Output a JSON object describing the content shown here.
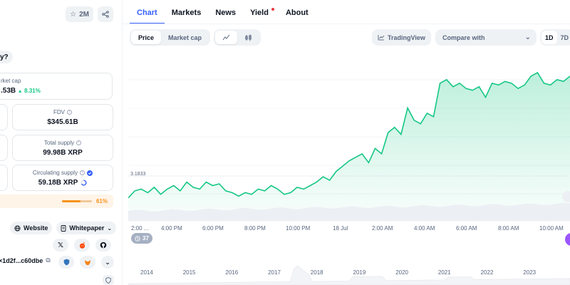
{
  "left": {
    "stars_count": "2M",
    "ask_text": "y?",
    "market_cap": {
      "label": "rket cap",
      "value": ".53B",
      "change": "8.31%"
    },
    "fdv": {
      "label": "FDV",
      "value": "$345.61B"
    },
    "total_supply": {
      "label": "Total supply",
      "value": "99.98B XRP"
    },
    "circulating_supply": {
      "label": "Circulating supply",
      "value": "59.18B XRP",
      "percent": 61,
      "percent_text": "61%"
    },
    "links": {
      "website": "Website",
      "whitepaper": "Whitepaper"
    },
    "socials": [
      "X",
      "reddit",
      "github"
    ],
    "contract": {
      "address": "×1d2f...c60dbe"
    }
  },
  "tabs": [
    {
      "label": "Chart"
    },
    {
      "label": "Markets"
    },
    {
      "label": "News"
    },
    {
      "label": "Yield"
    },
    {
      "label": "About"
    }
  ],
  "toolbar": {
    "price": "Price",
    "market_cap": "Market cap",
    "tradingview": "TradingView",
    "compare": "Compare with",
    "range_1d": "1D",
    "range_7d": "7D"
  },
  "chart_data": {
    "type": "area",
    "price_tag": "3.1833",
    "x_time_labels": [
      "2:00 ...",
      "4:00 PM",
      "6:00 PM",
      "8:00 PM",
      "10:00 PM",
      "18 Jul",
      "2:00 AM",
      "4:00 AM",
      "6:00 AM",
      "8:00 AM",
      "10:00 AM"
    ],
    "x_year_labels": [
      "2014",
      "2015",
      "2016",
      "2017",
      "2018",
      "2019",
      "2020",
      "2021",
      "2022",
      "2023"
    ],
    "events_badge": "37",
    "colors": {
      "line": "#16c784",
      "fill": "#16c784"
    },
    "series": [
      {
        "values": [
          3.18,
          3.22,
          3.23,
          3.21,
          3.24,
          3.2,
          3.23,
          3.25,
          3.22,
          3.27,
          3.24,
          3.23,
          3.27,
          3.25,
          3.26,
          3.22,
          3.21,
          3.19,
          3.21,
          3.2,
          3.23,
          3.22,
          3.25,
          3.23,
          3.2,
          3.21,
          3.24,
          3.23,
          3.25,
          3.27,
          3.3,
          3.28,
          3.33,
          3.36,
          3.39,
          3.41,
          3.43,
          3.38,
          3.46,
          3.43,
          3.55,
          3.58,
          3.54,
          3.69,
          3.62,
          3.6,
          3.66,
          3.64,
          3.83,
          3.85,
          3.81,
          3.83,
          3.8,
          3.79,
          3.81,
          3.75,
          3.83,
          3.82,
          3.84,
          3.83,
          3.8,
          3.82,
          3.87,
          3.89,
          3.83,
          3.82,
          3.85,
          3.84,
          3.87
        ]
      }
    ]
  }
}
